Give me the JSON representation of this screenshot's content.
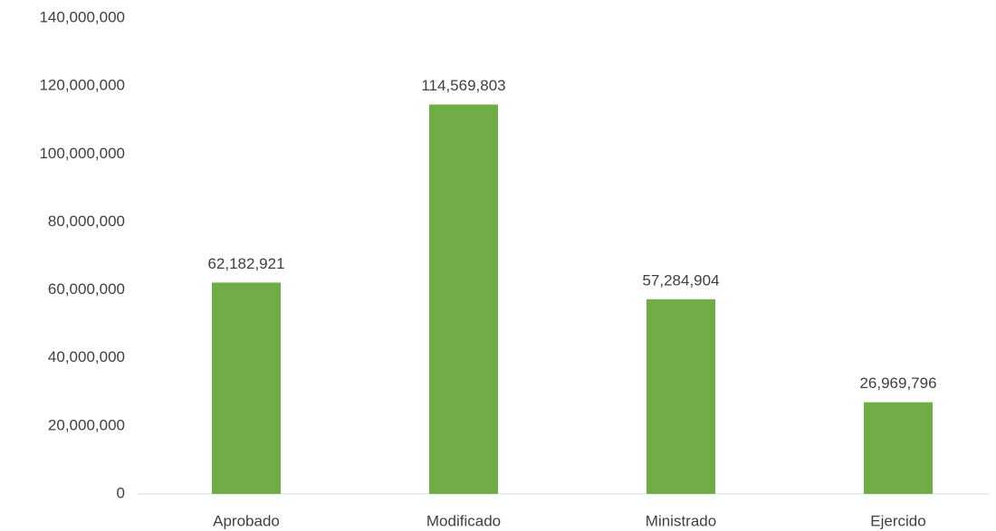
{
  "chart_data": {
    "type": "bar",
    "categories": [
      "Aprobado",
      "Modificado",
      "Ministrado",
      "Ejercido"
    ],
    "values": [
      62182921,
      114569803,
      57284904,
      26969796
    ],
    "value_labels": [
      "62,182,921",
      "114,569,803",
      "57,284,904",
      "26,969,796"
    ],
    "color": "#70ad47",
    "ylim": [
      0,
      140000000
    ],
    "yticks": [
      0,
      {
        "value": 20000000,
        "label": "20,000,000"
      },
      {
        "value": 40000000,
        "label": "40,000,000"
      },
      {
        "value": 60000000,
        "label": "60,000,000"
      },
      {
        "value": 80000000,
        "label": "80,000,000"
      },
      {
        "value": 100000000,
        "label": "100,000,000"
      },
      {
        "value": 120000000,
        "label": "120,000,000"
      },
      {
        "value": 140000000,
        "label": "140,000,000"
      }
    ],
    "grid": false
  }
}
